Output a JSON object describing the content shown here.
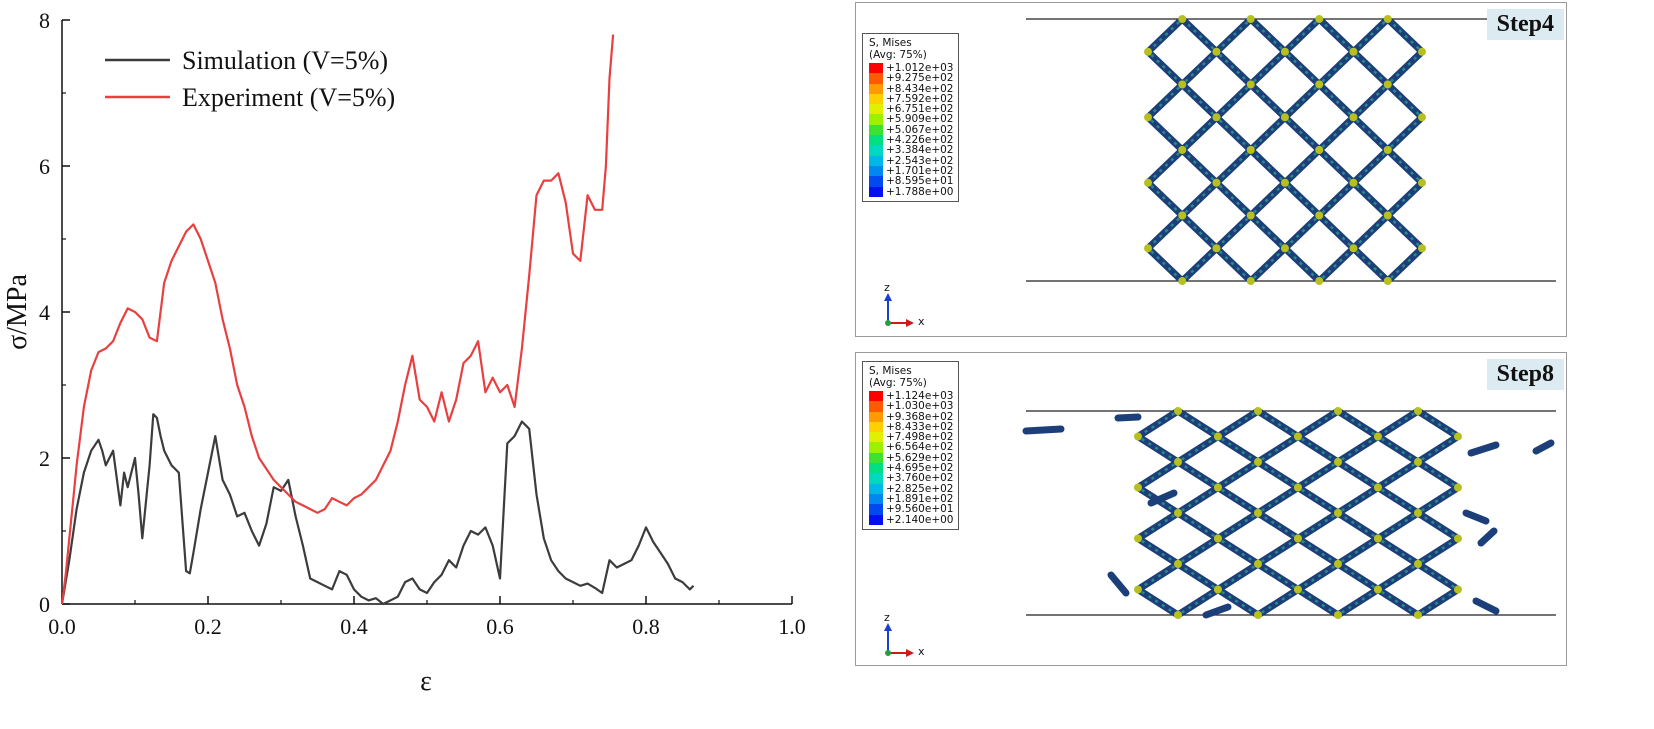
{
  "chart_data": {
    "type": "line",
    "xlabel": "ε",
    "ylabel": "σ/MPa",
    "xlim": [
      0.0,
      1.0
    ],
    "ylim": [
      0,
      8
    ],
    "x_ticks": [
      "0.0",
      "0.2",
      "0.4",
      "0.6",
      "0.8",
      "1.0"
    ],
    "y_ticks": [
      "0",
      "2",
      "4",
      "6",
      "8"
    ],
    "legend_position": "top-left",
    "series": [
      {
        "name": "Simulation  (V=5%)",
        "color": "#3c3c3c",
        "x": [
          0.0,
          0.01,
          0.02,
          0.03,
          0.04,
          0.05,
          0.055,
          0.06,
          0.07,
          0.08,
          0.085,
          0.09,
          0.1,
          0.105,
          0.11,
          0.12,
          0.125,
          0.13,
          0.135,
          0.14,
          0.15,
          0.16,
          0.17,
          0.175,
          0.18,
          0.19,
          0.2,
          0.21,
          0.22,
          0.23,
          0.24,
          0.25,
          0.26,
          0.27,
          0.28,
          0.29,
          0.3,
          0.31,
          0.32,
          0.33,
          0.34,
          0.35,
          0.36,
          0.37,
          0.38,
          0.39,
          0.4,
          0.41,
          0.42,
          0.43,
          0.44,
          0.45,
          0.46,
          0.47,
          0.48,
          0.49,
          0.5,
          0.51,
          0.52,
          0.53,
          0.54,
          0.55,
          0.56,
          0.57,
          0.58,
          0.59,
          0.6,
          0.61,
          0.62,
          0.63,
          0.64,
          0.65,
          0.66,
          0.67,
          0.68,
          0.69,
          0.7,
          0.71,
          0.72,
          0.73,
          0.74,
          0.75,
          0.76,
          0.77,
          0.78,
          0.79,
          0.8,
          0.81,
          0.82,
          0.83,
          0.84,
          0.85,
          0.86,
          0.865
        ],
        "values": [
          0.0,
          0.6,
          1.3,
          1.8,
          2.1,
          2.25,
          2.1,
          1.9,
          2.1,
          1.35,
          1.8,
          1.6,
          2.0,
          1.5,
          0.9,
          1.9,
          2.6,
          2.55,
          2.3,
          2.1,
          1.9,
          1.8,
          0.45,
          0.42,
          0.7,
          1.3,
          1.8,
          2.3,
          1.7,
          1.5,
          1.2,
          1.25,
          1.0,
          0.8,
          1.1,
          1.6,
          1.55,
          1.7,
          1.2,
          0.8,
          0.35,
          0.3,
          0.25,
          0.2,
          0.45,
          0.4,
          0.2,
          0.1,
          0.05,
          0.08,
          0.0,
          0.05,
          0.1,
          0.3,
          0.35,
          0.2,
          0.15,
          0.3,
          0.4,
          0.6,
          0.5,
          0.8,
          1.0,
          0.95,
          1.05,
          0.8,
          0.35,
          2.2,
          2.3,
          2.5,
          2.4,
          1.5,
          0.9,
          0.6,
          0.45,
          0.35,
          0.3,
          0.25,
          0.28,
          0.22,
          0.15,
          0.6,
          0.5,
          0.55,
          0.6,
          0.8,
          1.05,
          0.85,
          0.7,
          0.55,
          0.35,
          0.3,
          0.2,
          0.25
        ]
      },
      {
        "name": "Experiment (V=5%)",
        "color": "#e84040",
        "x": [
          0.0,
          0.005,
          0.01,
          0.015,
          0.02,
          0.03,
          0.04,
          0.05,
          0.06,
          0.07,
          0.08,
          0.09,
          0.1,
          0.11,
          0.12,
          0.13,
          0.14,
          0.15,
          0.16,
          0.17,
          0.18,
          0.19,
          0.2,
          0.21,
          0.22,
          0.23,
          0.24,
          0.25,
          0.26,
          0.27,
          0.28,
          0.29,
          0.3,
          0.31,
          0.32,
          0.33,
          0.34,
          0.35,
          0.36,
          0.37,
          0.38,
          0.39,
          0.4,
          0.41,
          0.42,
          0.43,
          0.44,
          0.45,
          0.46,
          0.47,
          0.48,
          0.49,
          0.5,
          0.51,
          0.52,
          0.53,
          0.54,
          0.55,
          0.56,
          0.57,
          0.58,
          0.59,
          0.6,
          0.61,
          0.62,
          0.63,
          0.64,
          0.65,
          0.66,
          0.67,
          0.68,
          0.69,
          0.7,
          0.71,
          0.72,
          0.73,
          0.74,
          0.745,
          0.75,
          0.755
        ],
        "values": [
          0.0,
          0.4,
          0.9,
          1.4,
          1.9,
          2.7,
          3.2,
          3.45,
          3.5,
          3.6,
          3.85,
          4.05,
          4.0,
          3.9,
          3.65,
          3.6,
          4.4,
          4.7,
          4.9,
          5.1,
          5.2,
          5.0,
          4.7,
          4.4,
          3.9,
          3.5,
          3.0,
          2.7,
          2.3,
          2.0,
          1.85,
          1.7,
          1.6,
          1.5,
          1.4,
          1.35,
          1.3,
          1.25,
          1.3,
          1.45,
          1.4,
          1.35,
          1.45,
          1.5,
          1.6,
          1.7,
          1.9,
          2.1,
          2.5,
          3.0,
          3.4,
          2.8,
          2.7,
          2.5,
          2.9,
          2.5,
          2.8,
          3.3,
          3.4,
          3.6,
          2.9,
          3.1,
          2.9,
          3.0,
          2.7,
          3.5,
          4.5,
          5.6,
          5.8,
          5.8,
          5.9,
          5.5,
          4.8,
          4.7,
          5.6,
          5.4,
          5.4,
          6.0,
          7.2,
          7.8
        ]
      }
    ]
  },
  "panels": [
    {
      "step_label": "Step4",
      "legend_title": "S, Mises",
      "legend_subtitle": "(Avg: 75%)",
      "legend_values": [
        "+1.012e+03",
        "+9.275e+02",
        "+8.434e+02",
        "+7.592e+02",
        "+6.751e+02",
        "+5.909e+02",
        "+5.067e+02",
        "+4.226e+02",
        "+3.384e+02",
        "+2.543e+02",
        "+1.701e+02",
        "+8.595e+01",
        "+1.788e+00"
      ],
      "axis_z": "z",
      "axis_x": "x"
    },
    {
      "step_label": "Step8",
      "legend_title": "S, Mises",
      "legend_subtitle": "(Avg: 75%)",
      "legend_values": [
        "+1.124e+03",
        "+1.030e+03",
        "+9.368e+02",
        "+8.433e+02",
        "+7.498e+02",
        "+6.564e+02",
        "+5.629e+02",
        "+4.695e+02",
        "+3.760e+02",
        "+2.825e+02",
        "+1.891e+02",
        "+9.560e+01",
        "+2.140e+00"
      ],
      "axis_z": "z",
      "axis_x": "x"
    }
  ],
  "contour_colors": [
    "#ff0000",
    "#ff5a00",
    "#ff9a00",
    "#ffd000",
    "#e0f000",
    "#9cf000",
    "#40e030",
    "#00e080",
    "#00d8c0",
    "#00b8e8",
    "#0088f0",
    "#0048f0",
    "#0010f0"
  ]
}
